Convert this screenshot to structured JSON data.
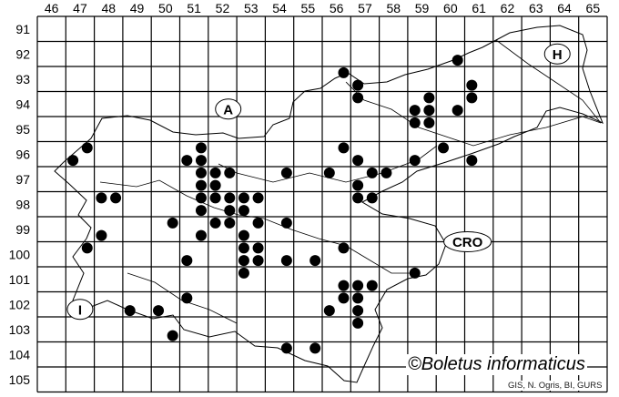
{
  "map": {
    "columns": [
      "46",
      "47",
      "48",
      "49",
      "50",
      "51",
      "52",
      "53",
      "54",
      "55",
      "56",
      "57",
      "58",
      "59",
      "60",
      "61",
      "62",
      "63",
      "64",
      "65"
    ],
    "rows": [
      "91",
      "92",
      "93",
      "94",
      "95",
      "96",
      "97",
      "98",
      "99",
      "100",
      "101",
      "102",
      "103",
      "104",
      "105"
    ],
    "regions": [
      {
        "label": "A",
        "col": 52.7,
        "row": 94.7
      },
      {
        "label": "H",
        "col": 64.25,
        "row": 92.5
      },
      {
        "label": "CRO",
        "col": 61.1,
        "row": 100.0
      },
      {
        "label": "I",
        "col": 47.5,
        "row": 102.7
      }
    ],
    "dot_color": "#000000",
    "records": [
      [
        47.75,
        96.25
      ],
      [
        47.25,
        96.75
      ],
      [
        51.25,
        96.75
      ],
      [
        51.75,
        96.25
      ],
      [
        51.75,
        96.75
      ],
      [
        51.75,
        97.25
      ],
      [
        52.25,
        97.25
      ],
      [
        52.75,
        97.25
      ],
      [
        54.75,
        97.25
      ],
      [
        56.25,
        97.25
      ],
      [
        51.75,
        97.75
      ],
      [
        52.25,
        97.75
      ],
      [
        48.25,
        98.25
      ],
      [
        48.75,
        98.25
      ],
      [
        51.75,
        98.25
      ],
      [
        52.25,
        98.25
      ],
      [
        52.75,
        98.25
      ],
      [
        53.25,
        98.25
      ],
      [
        53.75,
        98.25
      ],
      [
        51.75,
        98.75
      ],
      [
        52.75,
        98.75
      ],
      [
        53.25,
        98.75
      ],
      [
        50.75,
        99.25
      ],
      [
        52.25,
        99.25
      ],
      [
        52.75,
        99.25
      ],
      [
        53.75,
        99.25
      ],
      [
        54.75,
        99.25
      ],
      [
        48.25,
        99.75
      ],
      [
        51.75,
        99.75
      ],
      [
        53.25,
        99.75
      ],
      [
        47.75,
        100.25
      ],
      [
        53.25,
        100.25
      ],
      [
        53.75,
        100.25
      ],
      [
        51.25,
        100.75
      ],
      [
        53.25,
        100.75
      ],
      [
        53.75,
        100.75
      ],
      [
        54.75,
        100.75
      ],
      [
        55.75,
        100.75
      ],
      [
        53.25,
        101.25
      ],
      [
        51.25,
        102.25
      ],
      [
        49.25,
        102.75
      ],
      [
        50.25,
        102.75
      ],
      [
        56.25,
        102.75
      ],
      [
        50.75,
        103.75
      ],
      [
        54.75,
        104.25
      ],
      [
        55.75,
        104.25
      ],
      [
        56.75,
        100.25
      ],
      [
        59.25,
        101.25
      ],
      [
        56.75,
        101.75
      ],
      [
        57.25,
        101.75
      ],
      [
        57.75,
        101.75
      ],
      [
        56.75,
        102.25
      ],
      [
        57.25,
        102.25
      ],
      [
        57.25,
        102.75
      ],
      [
        57.25,
        103.25
      ],
      [
        60.75,
        92.75
      ],
      [
        56.75,
        93.25
      ],
      [
        57.25,
        93.75
      ],
      [
        61.25,
        93.75
      ],
      [
        57.25,
        94.25
      ],
      [
        61.25,
        94.25
      ],
      [
        59.75,
        94.25
      ],
      [
        59.25,
        94.75
      ],
      [
        59.75,
        94.75
      ],
      [
        60.75,
        94.75
      ],
      [
        59.25,
        95.25
      ],
      [
        59.75,
        95.25
      ],
      [
        56.75,
        96.25
      ],
      [
        60.25,
        96.25
      ],
      [
        57.25,
        96.75
      ],
      [
        59.25,
        96.75
      ],
      [
        61.25,
        96.75
      ],
      [
        57.75,
        97.25
      ],
      [
        58.25,
        97.25
      ],
      [
        57.25,
        97.75
      ],
      [
        57.25,
        98.25
      ],
      [
        57.75,
        98.25
      ]
    ]
  },
  "copyright": "©Boletus informaticus",
  "credit": "GIS, N. Ogris, BI, GURS"
}
